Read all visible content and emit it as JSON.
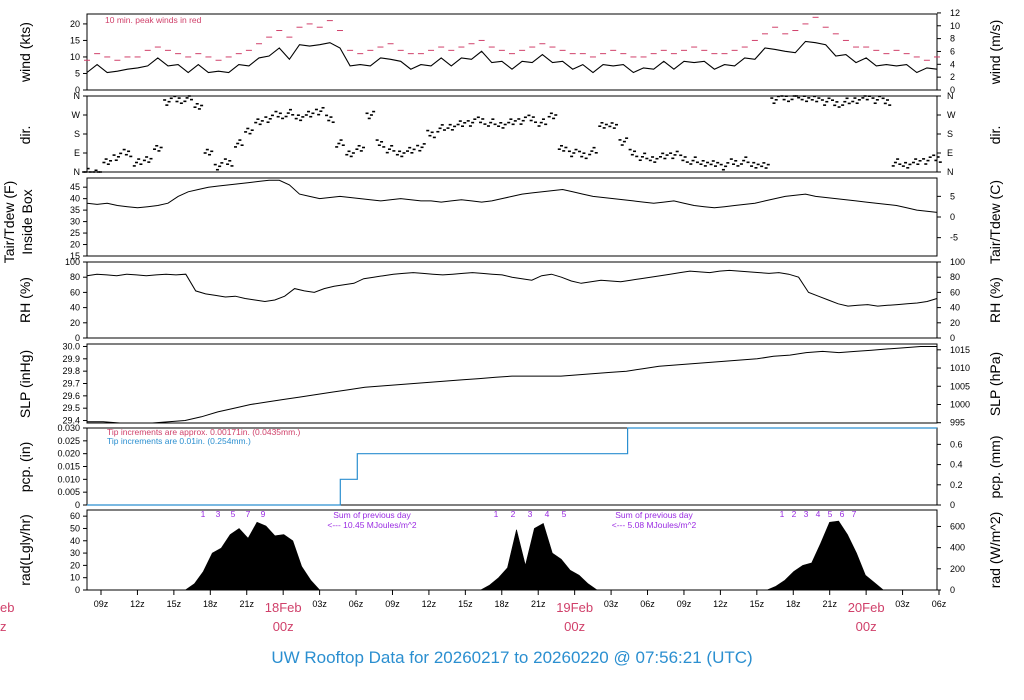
{
  "footer": {
    "prefix": "UW Rooftop Data for",
    "start": "20260217",
    "to": "to",
    "end": "20260220",
    "at": "@",
    "time": "07:56:21",
    "tz": "(UTC)"
  },
  "colors": {
    "line": "#000000",
    "peak": "#d0406a",
    "blue_note": "#2b8fd0",
    "purple": "#9a2be2",
    "date_label": "#d0406a",
    "footer": "#2b8fd0"
  },
  "time_axis": {
    "hour_ticks": [
      "09z",
      "12z",
      "15z",
      "18z",
      "21z",
      "18Feb",
      "03z",
      "06z",
      "09z",
      "12z",
      "15z",
      "18z",
      "21z",
      "19Feb",
      "03z",
      "06z",
      "09z",
      "12z",
      "15z",
      "18z",
      "21z",
      "20Feb",
      "03z",
      "06z"
    ],
    "date_labels": [
      {
        "label": "18Feb",
        "sub": "00z"
      },
      {
        "label": "19Feb",
        "sub": "00z"
      },
      {
        "label": "20Feb",
        "sub": "00z"
      }
    ],
    "cutoff_label": {
      "label": "eb",
      "sub": "z"
    }
  },
  "chart_data": [
    {
      "type": "line",
      "id": "wind",
      "ylabel": "wind (kts)",
      "ylabel_right": "wind (m/s)",
      "yticks": [
        0,
        5,
        10,
        15,
        20
      ],
      "yticks_right": [
        0,
        2,
        4,
        6,
        8,
        10,
        12
      ],
      "ylim": [
        0,
        23
      ],
      "annotation": "10 min. peak winds in red",
      "series": [
        {
          "values": [
            6,
            7,
            6,
            5,
            7,
            6,
            8,
            9,
            8,
            7,
            6,
            7,
            6,
            5,
            6,
            7,
            8,
            9,
            11,
            12,
            10,
            13,
            14,
            13,
            15,
            12,
            8,
            7,
            8,
            9,
            10,
            8,
            7,
            7,
            8,
            9,
            8,
            9,
            10,
            11,
            9,
            8,
            7,
            8,
            9,
            10,
            9,
            8,
            7,
            7,
            6,
            7,
            8,
            7,
            6,
            6,
            7,
            8,
            7,
            8,
            9,
            8,
            7,
            7,
            8,
            9,
            10,
            12,
            13,
            11,
            12,
            14,
            15,
            13,
            11,
            10,
            9,
            9,
            8,
            7,
            8,
            7,
            6,
            6,
            7
          ]
        },
        {
          "values": [
            9,
            11,
            10,
            9,
            10,
            10,
            12,
            13,
            12,
            11,
            10,
            11,
            10,
            9,
            10,
            11,
            12,
            14,
            16,
            18,
            16,
            19,
            20,
            19,
            21,
            18,
            12,
            11,
            12,
            13,
            14,
            12,
            11,
            11,
            12,
            13,
            12,
            13,
            14,
            15,
            13,
            12,
            11,
            12,
            13,
            14,
            13,
            12,
            11,
            11,
            10,
            11,
            12,
            11,
            10,
            10,
            11,
            12,
            11,
            12,
            13,
            12,
            11,
            11,
            12,
            13,
            15,
            17,
            19,
            17,
            18,
            20,
            22,
            19,
            17,
            15,
            13,
            13,
            12,
            11,
            12,
            11,
            10,
            9,
            10
          ]
        }
      ]
    },
    {
      "type": "scatter",
      "id": "dir",
      "ylabel": "dir.",
      "ylabel_right": "dir.",
      "ytick_labels": [
        "N",
        "E",
        "S",
        "W",
        "N"
      ],
      "series": [
        {
          "values": [
            0,
            0,
            0.5,
            0.8,
            1,
            0.5,
            0.7,
            1.2,
            3.7,
            3.8,
            3.9,
            3.5,
            1,
            0.3,
            0.5,
            1.5,
            2.2,
            2.6,
            2.8,
            3.0,
            3.1,
            2.9,
            3.0,
            3.2,
            2.8,
            1.5,
            1.0,
            1.2,
            3.0,
            1.5,
            1.2,
            1.0,
            1.1,
            1.3,
            2.0,
            2.3,
            2.4,
            2.5,
            2.6,
            2.7,
            2.6,
            2.5,
            2.6,
            2.7,
            2.8,
            2.6,
            3.0,
            1.2,
            1.0,
            0.9,
            1.1,
            2.5,
            2.4,
            1.6,
            1.0,
            0.8,
            0.7,
            0.8,
            0.9,
            0.7,
            0.6,
            0.5,
            0.4,
            0.3,
            0.5,
            0.6,
            0.4,
            0.3,
            3.8,
            3.9,
            4.0,
            3.9,
            3.8,
            3.7,
            3.6,
            3.7,
            3.8,
            3.9,
            3.8,
            3.7,
            0.5,
            0.4,
            0.5,
            0.6,
            0.7
          ]
        }
      ]
    },
    {
      "type": "line",
      "id": "temp",
      "ylabel": "Tair/Tdew (F)",
      "ylabel2": "Inside Box",
      "ylabel_right": "Tair/Tdew (C)",
      "yticks": [
        15,
        20,
        25,
        30,
        35,
        40,
        45
      ],
      "yticks_right": [
        -5,
        0,
        5
      ],
      "ylim": [
        15,
        49
      ],
      "series": [
        {
          "values": [
            38,
            37.5,
            38,
            37,
            36.5,
            36,
            36.5,
            37,
            38,
            41,
            43,
            44,
            45,
            45.5,
            46,
            46.5,
            47,
            47.5,
            48,
            48,
            46,
            42,
            41,
            40,
            40.5,
            41,
            40.5,
            40,
            39.5,
            39,
            39.5,
            40,
            39.5,
            39,
            39,
            38.5,
            39,
            39.5,
            39,
            38.5,
            39,
            40,
            41,
            42,
            42.5,
            43,
            43.5,
            44,
            43,
            42,
            41,
            40.5,
            40,
            39.5,
            39,
            38.5,
            38,
            38.5,
            39,
            38,
            37,
            36.5,
            36,
            36.5,
            37,
            37.5,
            38,
            39,
            40,
            41,
            41.5,
            42,
            41,
            40.5,
            40,
            39.5,
            39,
            38.5,
            38,
            37.5,
            37,
            36,
            35,
            34.5,
            34
          ]
        }
      ]
    },
    {
      "type": "line",
      "id": "rh",
      "ylabel": "RH (%)",
      "ylabel_right": "RH (%)",
      "yticks": [
        0,
        20,
        40,
        60,
        80,
        100
      ],
      "ylim": [
        0,
        100
      ],
      "series": [
        {
          "values": [
            82,
            84,
            83,
            82,
            84,
            83,
            82,
            83,
            84,
            83,
            84,
            62,
            58,
            56,
            54,
            55,
            52,
            50,
            48,
            50,
            55,
            65,
            62,
            60,
            65,
            68,
            70,
            72,
            78,
            80,
            82,
            84,
            85,
            86,
            85,
            84,
            83,
            84,
            85,
            86,
            85,
            84,
            83,
            80,
            78,
            76,
            82,
            84,
            80,
            75,
            72,
            74,
            76,
            75,
            74,
            76,
            78,
            80,
            82,
            84,
            86,
            88,
            87,
            86,
            88,
            89,
            88,
            87,
            86,
            85,
            86,
            84,
            80,
            60,
            55,
            50,
            45,
            42,
            43,
            44,
            42,
            43,
            44,
            45,
            46,
            48,
            52
          ]
        }
      ]
    },
    {
      "type": "line",
      "id": "slp",
      "ylabel": "SLP (inHg)",
      "ylabel_right": "SLP (hPa)",
      "yticks": [
        29.4,
        29.5,
        29.6,
        29.7,
        29.8,
        29.9,
        30.0
      ],
      "yticks_right": [
        995,
        1000,
        1005,
        1010,
        1015
      ],
      "ylim": [
        29.38,
        30.02
      ],
      "series": [
        {
          "values": [
            29.39,
            29.39,
            29.38,
            29.38,
            29.38,
            29.39,
            29.4,
            29.43,
            29.47,
            29.5,
            29.53,
            29.55,
            29.57,
            29.59,
            29.61,
            29.63,
            29.65,
            29.67,
            29.68,
            29.69,
            29.7,
            29.71,
            29.72,
            29.73,
            29.74,
            29.75,
            29.76,
            29.76,
            29.76,
            29.76,
            29.77,
            29.78,
            29.79,
            29.8,
            29.82,
            29.84,
            29.85,
            29.86,
            29.87,
            29.88,
            29.89,
            29.9,
            29.92,
            29.93,
            29.95,
            29.96,
            29.95,
            29.96,
            29.97,
            29.98,
            29.99,
            30.0,
            30.0
          ]
        }
      ]
    },
    {
      "type": "line",
      "id": "pcp",
      "ylabel": "pcp. (in)",
      "ylabel_right": "pcp. (mm)",
      "yticks": [
        0,
        0.005,
        0.01,
        0.015,
        0.02,
        0.025,
        0.03
      ],
      "ytick_labels": [
        "0",
        "0.005",
        "0.010",
        "0.015",
        "0.020",
        "0.025",
        "0.030"
      ],
      "yticks_right": [
        0,
        0.2,
        0.4,
        0.6
      ],
      "ylim": [
        0,
        0.03
      ],
      "notes": [
        {
          "text": "Tip increments are approx. 0.00171in. (0.0435mm.)",
          "color": "#d0406a"
        },
        {
          "text": "Tip increments are 0.01in. (0.254mm.)",
          "color": "#2b8fd0"
        }
      ],
      "series": [
        {
          "x": [
            0,
            0.298,
            0.298,
            0.318,
            0.318,
            0.636,
            0.636,
            1.0
          ],
          "values": [
            0,
            0,
            0.01,
            0.01,
            0.02,
            0.02,
            0.03,
            0.03
          ]
        }
      ]
    },
    {
      "type": "area",
      "id": "rad",
      "ylabel": "rad(Lgly/hr)",
      "ylabel_right": "rad (W/m^2)",
      "yticks": [
        0,
        10,
        20,
        30,
        40,
        50,
        60
      ],
      "yticks_right": [
        0,
        200,
        400,
        600
      ],
      "ylim": [
        0,
        65
      ],
      "day_hours": [
        "1",
        "3",
        "5",
        "7",
        "9"
      ],
      "day_hours_2": [
        "1",
        "2",
        "3",
        "4",
        "5"
      ],
      "day_hours_3": [
        "1",
        "2",
        "3",
        "4",
        "5",
        "6",
        "7"
      ],
      "sum_notes": [
        {
          "title": "Sum of previous day",
          "value": "<--- 10.45 MJoules/m^2"
        },
        {
          "title": "Sum of previous day",
          "value": "<--- 5.08 MJoules/m^2"
        }
      ],
      "series": [
        {
          "values": [
            0,
            0,
            0,
            0,
            0,
            0,
            0,
            0,
            0,
            0,
            0,
            0,
            5,
            15,
            30,
            40,
            45,
            50,
            48,
            55,
            52,
            50,
            45,
            40,
            25,
            8,
            0,
            0,
            0,
            0,
            0,
            0,
            0,
            0,
            0,
            0,
            0,
            0,
            0,
            0,
            0,
            0,
            0,
            0,
            0,
            4,
            10,
            18,
            55,
            20,
            50,
            60,
            30,
            25,
            22,
            12,
            5,
            0,
            0,
            0,
            0,
            0,
            0,
            0,
            0,
            0,
            0,
            0,
            0,
            0,
            0,
            0,
            0,
            0,
            0,
            0,
            0,
            3,
            8,
            15,
            20,
            28,
            38,
            55,
            62,
            45,
            30,
            18,
            6,
            0,
            0,
            0,
            0,
            0,
            0,
            0
          ]
        }
      ]
    }
  ]
}
